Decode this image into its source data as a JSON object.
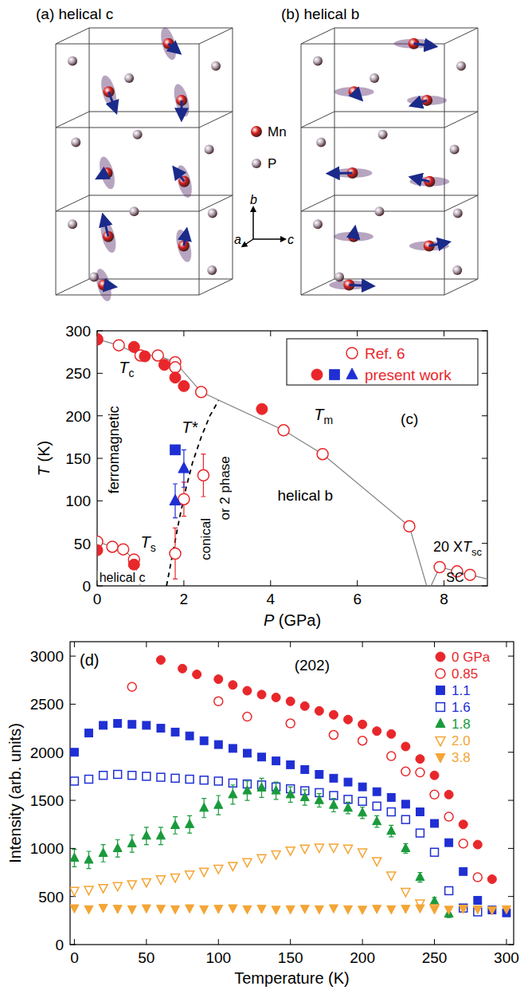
{
  "figure": {
    "panels": [
      {
        "title": "(a) helical c"
      },
      {
        "title": "(b) helical b"
      }
    ],
    "atoms": [
      {
        "label": "Mn",
        "color": "#d6201e"
      },
      {
        "label": "P",
        "color": "#b8aab8"
      }
    ],
    "axes": [
      "a",
      "b",
      "c"
    ]
  },
  "chart_data": [
    {
      "type": "scatter",
      "x_label": "P (GPa)",
      "y_label": "T (K)",
      "xlim": [
        0,
        9
      ],
      "ylim": [
        0,
        300
      ],
      "xticks": [
        0,
        2,
        4,
        6,
        8
      ],
      "yticks": [
        0,
        50,
        100,
        150,
        200,
        250,
        300
      ],
      "legend": "top-right",
      "annotations": [
        {
          "text": "T",
          "sub": "c"
        },
        {
          "text": "ferromagnetic"
        },
        {
          "text": "T",
          "sub": "s"
        },
        {
          "text": "helical c"
        },
        {
          "text": "T*"
        },
        {
          "text": "conical"
        },
        {
          "text": "or 2 phase"
        },
        {
          "text": "T",
          "sub": "m"
        },
        {
          "text": "helical b"
        },
        {
          "text": "(c)"
        },
        {
          "text": "20 XT",
          "sub": "sc"
        },
        {
          "text": "SC"
        }
      ],
      "series": [
        {
          "name": "Ref. 6",
          "type": "scatter",
          "marker": "open-circle",
          "color": "#e8272b",
          "x": [
            0,
            0.5,
            1.0,
            1.4,
            1.8,
            1.8,
            2.4,
            4.3,
            5.2,
            7.2,
            7.9,
            8.3,
            8.6,
            0,
            0.35,
            0.6,
            0.85,
            1.8,
            2.0,
            2.45
          ],
          "values": [
            290,
            283,
            271,
            271,
            263,
            257,
            228,
            183,
            155,
            70,
            22,
            17,
            13,
            52,
            46,
            43,
            31,
            38,
            102,
            130
          ],
          "errors": [
            null,
            null,
            null,
            null,
            null,
            null,
            null,
            null,
            null,
            null,
            null,
            null,
            null,
            null,
            null,
            null,
            null,
            30,
            20,
            25
          ]
        },
        {
          "name": "present work",
          "type": "scatter",
          "marker": "circle",
          "color": "#e8272b",
          "x": [
            0,
            0.85,
            1.1,
            1.55,
            1.8,
            2.0,
            3.8,
            0,
            0.85
          ],
          "values": [
            290,
            281,
            270,
            260,
            245,
            235,
            208,
            42,
            25
          ]
        },
        {
          "name": "present work",
          "type": "scatter",
          "marker": "square",
          "color": "#1f2fd3",
          "x": [
            1.8
          ],
          "values": [
            160
          ]
        },
        {
          "name": "present work",
          "type": "scatter",
          "marker": "triangle",
          "color": "#1f2fd3",
          "x": [
            1.8,
            2.0
          ],
          "values": [
            100,
            138
          ],
          "errors": [
            20,
            22
          ]
        },
        {
          "type": "line",
          "line_style": "solid",
          "color": "#808080",
          "x": [
            0,
            0.5,
            1.0,
            1.4,
            1.8,
            2.4,
            4.3,
            5.2,
            7.2,
            7.6
          ],
          "values": [
            290,
            283,
            271,
            271,
            263,
            228,
            183,
            155,
            70,
            0
          ]
        },
        {
          "type": "line",
          "line_style": "solid",
          "color": "#808080",
          "x": [
            0,
            0.35,
            0.6,
            0.85,
            1.0
          ],
          "values": [
            52,
            46,
            43,
            31,
            0
          ]
        },
        {
          "type": "line",
          "line_style": "solid",
          "color": "#808080",
          "x": [
            7.7,
            7.9,
            8.3,
            8.6,
            9.0
          ],
          "values": [
            0,
            22,
            17,
            13,
            8
          ]
        },
        {
          "type": "line",
          "line_style": "dashed",
          "color": "#000000",
          "x": [
            1.6,
            1.75,
            1.9,
            2.05,
            2.2,
            2.4,
            2.6,
            2.8
          ],
          "values": [
            0,
            40,
            80,
            115,
            145,
            175,
            200,
            218
          ]
        }
      ]
    },
    {
      "type": "scatter",
      "x_label": "Temperature (K)",
      "y_label": "Intensity (arb. units)",
      "xlim": [
        -3,
        305
      ],
      "ylim": [
        0,
        3150
      ],
      "xticks": [
        0,
        50,
        100,
        150,
        200,
        250,
        300
      ],
      "yticks": [
        0,
        500,
        1000,
        1500,
        2000,
        2500,
        3000
      ],
      "legend": "top-right",
      "annotations": [
        {
          "text": "(d)"
        },
        {
          "text": "(202)"
        }
      ],
      "series": [
        {
          "name": "0 GPa",
          "marker": "circle",
          "color": "#e8272b",
          "x": [
            60,
            75,
            85,
            100,
            110,
            120,
            130,
            140,
            150,
            160,
            170,
            180,
            190,
            200,
            210,
            220,
            230,
            240,
            250,
            260,
            270,
            280,
            290
          ],
          "values": [
            2960,
            2870,
            2810,
            2760,
            2700,
            2640,
            2600,
            2570,
            2530,
            2480,
            2430,
            2390,
            2340,
            2290,
            2220,
            2190,
            2060,
            1930,
            1760,
            1560,
            1250,
            1040,
            680
          ]
        },
        {
          "name": "0.85",
          "marker": "open-circle",
          "color": "#e8272b",
          "x": [
            40,
            100,
            120,
            150,
            180,
            200,
            220,
            230,
            240,
            250,
            260,
            270,
            280
          ],
          "values": [
            2680,
            2530,
            2370,
            2300,
            2180,
            2120,
            1960,
            1800,
            1790,
            1560,
            1330,
            1050,
            700
          ]
        },
        {
          "name": "1.1",
          "marker": "square",
          "color": "#1f2fd3",
          "x": [
            0,
            10,
            20,
            30,
            40,
            50,
            60,
            70,
            80,
            90,
            100,
            110,
            120,
            130,
            140,
            150,
            160,
            170,
            180,
            190,
            200,
            210,
            220,
            230,
            240,
            250,
            260,
            270,
            280,
            290,
            300
          ],
          "values": [
            2000,
            2200,
            2280,
            2300,
            2290,
            2280,
            2250,
            2210,
            2170,
            2120,
            2080,
            2040,
            1990,
            1950,
            1910,
            1870,
            1820,
            1770,
            1730,
            1690,
            1640,
            1590,
            1530,
            1460,
            1380,
            1260,
            1060,
            760,
            460,
            360,
            330
          ]
        },
        {
          "name": "1.6",
          "marker": "open-square",
          "color": "#1f2fd3",
          "x": [
            0,
            10,
            20,
            30,
            40,
            50,
            60,
            70,
            80,
            90,
            100,
            110,
            120,
            130,
            140,
            150,
            160,
            170,
            180,
            190,
            200,
            210,
            220,
            230,
            240,
            250,
            260,
            270,
            280
          ],
          "values": [
            1700,
            1720,
            1760,
            1770,
            1760,
            1750,
            1740,
            1730,
            1720,
            1710,
            1700,
            1680,
            1670,
            1660,
            1640,
            1620,
            1600,
            1580,
            1550,
            1510,
            1490,
            1440,
            1380,
            1300,
            1160,
            960,
            560,
            380,
            340
          ]
        },
        {
          "name": "1.8",
          "marker": "triangle",
          "color": "#1a9a3c",
          "x": [
            0,
            10,
            20,
            30,
            40,
            50,
            60,
            70,
            80,
            90,
            100,
            110,
            120,
            130,
            140,
            150,
            160,
            170,
            180,
            190,
            200,
            210,
            220,
            230,
            240,
            250,
            260
          ],
          "values": [
            900,
            880,
            950,
            1000,
            1050,
            1130,
            1130,
            1240,
            1250,
            1420,
            1450,
            1560,
            1600,
            1630,
            1600,
            1560,
            1530,
            1500,
            1450,
            1420,
            1370,
            1280,
            1180,
            1000,
            700,
            450,
            320
          ],
          "errors": [
            90,
            90,
            90,
            90,
            90,
            90,
            90,
            90,
            90,
            100,
            100,
            100,
            100,
            100,
            90,
            80,
            80,
            70,
            70,
            60,
            60,
            60,
            60,
            50,
            50,
            40,
            40
          ]
        },
        {
          "name": "2.0",
          "marker": "open-down-triangle",
          "color": "#f4a535",
          "x": [
            0,
            10,
            20,
            30,
            40,
            50,
            60,
            70,
            80,
            90,
            100,
            110,
            120,
            130,
            140,
            150,
            160,
            170,
            180,
            190,
            200,
            210,
            220,
            230,
            240,
            250
          ],
          "values": [
            560,
            570,
            590,
            610,
            630,
            650,
            680,
            700,
            730,
            760,
            790,
            820,
            860,
            900,
            940,
            980,
            1000,
            1010,
            1010,
            1000,
            960,
            870,
            720,
            550,
            430,
            380
          ]
        },
        {
          "name": "3.8",
          "marker": "down-triangle",
          "color": "#f4a535",
          "x": [
            0,
            10,
            20,
            30,
            40,
            50,
            60,
            70,
            80,
            90,
            100,
            110,
            120,
            130,
            140,
            150,
            160,
            170,
            180,
            190,
            200,
            210,
            220,
            230,
            240,
            250,
            260,
            270,
            280,
            290,
            300
          ],
          "values": [
            380,
            370,
            385,
            375,
            370,
            380,
            375,
            370,
            380,
            370,
            375,
            380,
            370,
            375,
            365,
            370,
            375,
            370,
            380,
            370,
            365,
            375,
            370,
            375,
            380,
            370,
            365,
            375,
            370,
            360,
            370
          ]
        }
      ]
    }
  ]
}
